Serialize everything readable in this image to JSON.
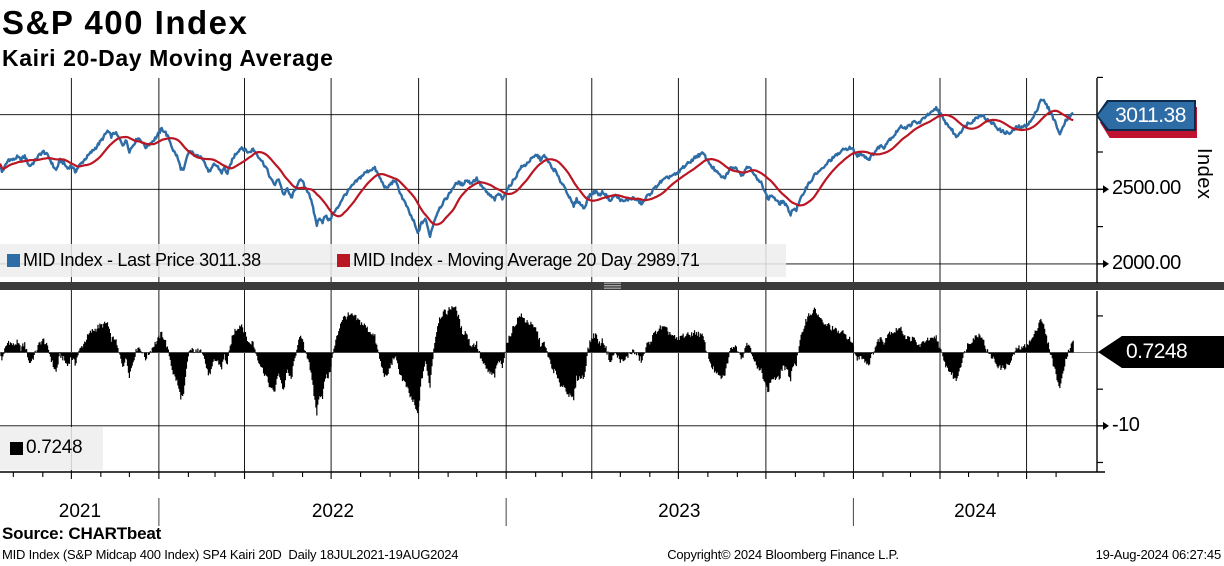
{
  "header": {
    "title": "S&P 400 Index",
    "subtitle": "Kairi 20-Day Moving Average"
  },
  "legend_top": {
    "items": [
      {
        "label": "MID Index - Last Price 3011.38",
        "swatch_color": "#2e6ca6"
      },
      {
        "label": "MID Index - Moving Average 20 Day 2989.71",
        "swatch_color": "#bb1624"
      }
    ]
  },
  "legend_bottom": {
    "label": "0.7248",
    "swatch_color": "#000000"
  },
  "badges": {
    "price": "3011.38",
    "kairi": "0.7248"
  },
  "axis": {
    "index_label": "Index",
    "top_labels": [
      {
        "value": 2500,
        "text": "2500.00"
      },
      {
        "value": 2000,
        "text": "2000.00"
      }
    ],
    "bottom_labels": [
      {
        "value": -10,
        "text": "-10"
      }
    ],
    "years": [
      {
        "text": "2021",
        "center_day": 84
      },
      {
        "text": "2022",
        "center_day": 350
      },
      {
        "text": "2023",
        "center_day": 714
      },
      {
        "text": "2024",
        "center_day": 1025
      }
    ]
  },
  "footer": {
    "source": "Source: CHARTbeat",
    "description": "MID Index (S&P Midcap 400 Index) SP4 Kairi 20D  Daily 18JUL2021-19AUG2024",
    "copyright": "Copyright© 2024 Bloomberg Finance L.P.",
    "timestamp": "19-Aug-2024 06:27:45"
  },
  "chart_data": {
    "type": "line+bar",
    "title": "S&P 400 Index - Kairi 20-Day Moving Average",
    "x_range_label": "18JUL2021-19AUG2024",
    "x": {
      "total_days": 1153,
      "data_days": 1128,
      "quarter_gridline_days": [
        75,
        167,
        257,
        348,
        440,
        532,
        622,
        713,
        805,
        897,
        988,
        1079
      ],
      "month_tick_days": [
        14,
        45,
        75,
        106,
        136,
        167,
        198,
        226,
        257,
        287,
        318,
        348,
        379,
        410,
        440,
        471,
        501,
        532,
        563,
        591,
        622,
        652,
        683,
        713,
        744,
        775,
        805,
        836,
        866,
        897,
        928,
        957,
        988,
        1018,
        1049,
        1079,
        1110
      ],
      "year_separator_days": [
        167,
        532,
        897
      ]
    },
    "panels": [
      {
        "type": "line",
        "name": "price",
        "series": [
          {
            "name": "MID Index - Last Price",
            "color": "#2e6ca6",
            "last_value": 3011.38
          },
          {
            "name": "MID Index - Moving Average 20 Day",
            "color": "#bb1624",
            "derived": "moving_average",
            "window_days": 28,
            "last_value": 2989.71
          }
        ],
        "y_gridlines": [
          2000,
          2500,
          3000
        ],
        "y_tick_step": 250,
        "y_labeled_ticks": [
          2500,
          2000
        ],
        "y_minor_ticks": [
          3250,
          2750,
          2250
        ],
        "value_range_bottom_top": [
          1872,
          3246
        ],
        "ylabel": "Index"
      },
      {
        "type": "bar",
        "name": "kairi",
        "series": [
          {
            "name": "Kairi 20-Day",
            "color": "#000000",
            "derived": "kairi_percent",
            "last_value": 0.7248
          }
        ],
        "y_gridlines": [
          -10
        ],
        "y_tick_step": 5,
        "y_labeled_ticks": [
          -10
        ],
        "y_minor_ticks": [
          5,
          -5,
          -15
        ],
        "value_range_bottom_top": [
          -16.3,
          8.4
        ]
      }
    ],
    "noise_amplitude": 11,
    "price_keypoints": [
      [
        0,
        2672
      ],
      [
        2,
        2615
      ],
      [
        5,
        2650
      ],
      [
        9,
        2700
      ],
      [
        14,
        2698
      ],
      [
        18,
        2716
      ],
      [
        22,
        2700
      ],
      [
        26,
        2722
      ],
      [
        31,
        2655
      ],
      [
        36,
        2684
      ],
      [
        42,
        2736
      ],
      [
        46,
        2752
      ],
      [
        51,
        2720
      ],
      [
        56,
        2655
      ],
      [
        59,
        2628
      ],
      [
        63,
        2694
      ],
      [
        67,
        2676
      ],
      [
        71,
        2640
      ],
      [
        75,
        2660
      ],
      [
        79,
        2618
      ],
      [
        83,
        2656
      ],
      [
        89,
        2700
      ],
      [
        95,
        2742
      ],
      [
        101,
        2782
      ],
      [
        107,
        2832
      ],
      [
        113,
        2890
      ],
      [
        117,
        2856
      ],
      [
        121,
        2882
      ],
      [
        125,
        2842
      ],
      [
        129,
        2800
      ],
      [
        133,
        2826
      ],
      [
        136,
        2756
      ],
      [
        141,
        2808
      ],
      [
        145,
        2846
      ],
      [
        149,
        2822
      ],
      [
        153,
        2782
      ],
      [
        157,
        2802
      ],
      [
        161,
        2826
      ],
      [
        165,
        2856
      ],
      [
        170,
        2906
      ],
      [
        174,
        2880
      ],
      [
        178,
        2832
      ],
      [
        182,
        2762
      ],
      [
        186,
        2722
      ],
      [
        190,
        2642
      ],
      [
        193,
        2622
      ],
      [
        196,
        2702
      ],
      [
        199,
        2758
      ],
      [
        203,
        2740
      ],
      [
        207,
        2716
      ],
      [
        211,
        2730
      ],
      [
        215,
        2680
      ],
      [
        218,
        2632
      ],
      [
        221,
        2616
      ],
      [
        225,
        2670
      ],
      [
        229,
        2650
      ],
      [
        233,
        2612
      ],
      [
        236,
        2646
      ],
      [
        239,
        2602
      ],
      [
        243,
        2680
      ],
      [
        247,
        2732
      ],
      [
        251,
        2762
      ],
      [
        254,
        2782
      ],
      [
        258,
        2760
      ],
      [
        262,
        2746
      ],
      [
        266,
        2770
      ],
      [
        270,
        2736
      ],
      [
        275,
        2692
      ],
      [
        280,
        2642
      ],
      [
        285,
        2562
      ],
      [
        289,
        2532
      ],
      [
        293,
        2572
      ],
      [
        298,
        2462
      ],
      [
        302,
        2502
      ],
      [
        306,
        2442
      ],
      [
        310,
        2492
      ],
      [
        313,
        2542
      ],
      [
        317,
        2562
      ],
      [
        321,
        2512
      ],
      [
        325,
        2472
      ],
      [
        329,
        2372
      ],
      [
        333,
        2262
      ],
      [
        336,
        2312
      ],
      [
        339,
        2282
      ],
      [
        342,
        2322
      ],
      [
        346,
        2292
      ],
      [
        350,
        2332
      ],
      [
        355,
        2378
      ],
      [
        360,
        2440
      ],
      [
        366,
        2490
      ],
      [
        372,
        2536
      ],
      [
        378,
        2576
      ],
      [
        384,
        2612
      ],
      [
        391,
        2636
      ],
      [
        394,
        2640
      ],
      [
        398,
        2592
      ],
      [
        402,
        2542
      ],
      [
        406,
        2502
      ],
      [
        410,
        2532
      ],
      [
        415,
        2562
      ],
      [
        419,
        2502
      ],
      [
        423,
        2442
      ],
      [
        427,
        2392
      ],
      [
        431,
        2332
      ],
      [
        435,
        2282
      ],
      [
        439,
        2203
      ],
      [
        443,
        2272
      ],
      [
        447,
        2302
      ],
      [
        450,
        2232
      ],
      [
        452,
        2188
      ],
      [
        456,
        2282
      ],
      [
        461,
        2366
      ],
      [
        466,
        2412
      ],
      [
        471,
        2456
      ],
      [
        476,
        2512
      ],
      [
        481,
        2546
      ],
      [
        486,
        2532
      ],
      [
        490,
        2562
      ],
      [
        495,
        2542
      ],
      [
        501,
        2572
      ],
      [
        506,
        2522
      ],
      [
        511,
        2482
      ],
      [
        516,
        2452
      ],
      [
        520,
        2432
      ],
      [
        524,
        2472
      ],
      [
        528,
        2442
      ],
      [
        532,
        2482
      ],
      [
        537,
        2536
      ],
      [
        542,
        2582
      ],
      [
        547,
        2644
      ],
      [
        552,
        2662
      ],
      [
        557,
        2694
      ],
      [
        561,
        2714
      ],
      [
        564,
        2731
      ],
      [
        568,
        2702
      ],
      [
        572,
        2722
      ],
      [
        576,
        2692
      ],
      [
        580,
        2642
      ],
      [
        584,
        2622
      ],
      [
        588,
        2562
      ],
      [
        592,
        2532
      ],
      [
        596,
        2482
      ],
      [
        600,
        2422
      ],
      [
        603,
        2388
      ],
      [
        606,
        2432
      ],
      [
        610,
        2402
      ],
      [
        614,
        2372
      ],
      [
        618,
        2442
      ],
      [
        622,
        2472
      ],
      [
        626,
        2486
      ],
      [
        630,
        2462
      ],
      [
        634,
        2482
      ],
      [
        638,
        2452
      ],
      [
        642,
        2422
      ],
      [
        646,
        2462
      ],
      [
        650,
        2442
      ],
      [
        655,
        2416
      ],
      [
        660,
        2432
      ],
      [
        665,
        2442
      ],
      [
        670,
        2426
      ],
      [
        675,
        2402
      ],
      [
        680,
        2452
      ],
      [
        685,
        2482
      ],
      [
        690,
        2522
      ],
      [
        695,
        2552
      ],
      [
        700,
        2572
      ],
      [
        706,
        2592
      ],
      [
        712,
        2602
      ],
      [
        717,
        2644
      ],
      [
        722,
        2666
      ],
      [
        727,
        2694
      ],
      [
        732,
        2722
      ],
      [
        736,
        2732
      ],
      [
        739,
        2741
      ],
      [
        743,
        2702
      ],
      [
        747,
        2662
      ],
      [
        751,
        2632
      ],
      [
        755,
        2602
      ],
      [
        761,
        2572
      ],
      [
        765,
        2612
      ],
      [
        769,
        2652
      ],
      [
        773,
        2642
      ],
      [
        776,
        2630
      ],
      [
        780,
        2592
      ],
      [
        784,
        2642
      ],
      [
        788,
        2652
      ],
      [
        792,
        2612
      ],
      [
        796,
        2562
      ],
      [
        800,
        2542
      ],
      [
        804,
        2492
      ],
      [
        807,
        2432
      ],
      [
        811,
        2462
      ],
      [
        815,
        2432
      ],
      [
        819,
        2402
      ],
      [
        823,
        2422
      ],
      [
        827,
        2382
      ],
      [
        831,
        2335
      ],
      [
        834,
        2372
      ],
      [
        837,
        2362
      ],
      [
        841,
        2426
      ],
      [
        845,
        2482
      ],
      [
        849,
        2532
      ],
      [
        853,
        2562
      ],
      [
        857,
        2602
      ],
      [
        861,
        2622
      ],
      [
        866,
        2642
      ],
      [
        870,
        2682
      ],
      [
        874,
        2702
      ],
      [
        878,
        2722
      ],
      [
        882,
        2742
      ],
      [
        886,
        2762
      ],
      [
        892,
        2778
      ],
      [
        896,
        2770
      ],
      [
        901,
        2722
      ],
      [
        905,
        2742
      ],
      [
        909,
        2722
      ],
      [
        913,
        2700
      ],
      [
        917,
        2732
      ],
      [
        921,
        2762
      ],
      [
        925,
        2792
      ],
      [
        929,
        2782
      ],
      [
        933,
        2822
      ],
      [
        936,
        2842
      ],
      [
        940,
        2862
      ],
      [
        944,
        2902
      ],
      [
        948,
        2922
      ],
      [
        952,
        2912
      ],
      [
        957,
        2932
      ],
      [
        961,
        2952
      ],
      [
        965,
        2942
      ],
      [
        969,
        2962
      ],
      [
        973,
        2992
      ],
      [
        977,
        3002
      ],
      [
        981,
        3022
      ],
      [
        984,
        3046
      ],
      [
        988,
        3012
      ],
      [
        992,
        2962
      ],
      [
        996,
        2932
      ],
      [
        1000,
        2902
      ],
      [
        1005,
        2852
      ],
      [
        1009,
        2882
      ],
      [
        1013,
        2912
      ],
      [
        1017,
        2942
      ],
      [
        1021,
        2952
      ],
      [
        1025,
        2972
      ],
      [
        1029,
        2992
      ],
      [
        1032,
        3002
      ],
      [
        1036,
        2972
      ],
      [
        1040,
        2952
      ],
      [
        1044,
        2942
      ],
      [
        1048,
        2912
      ],
      [
        1052,
        2892
      ],
      [
        1056,
        2882
      ],
      [
        1062,
        2874
      ],
      [
        1066,
        2902
      ],
      [
        1070,
        2922
      ],
      [
        1074,
        2912
      ],
      [
        1079,
        2932
      ],
      [
        1083,
        2952
      ],
      [
        1087,
        2992
      ],
      [
        1091,
        3052
      ],
      [
        1094,
        3106
      ],
      [
        1097,
        3092
      ],
      [
        1100,
        3062
      ],
      [
        1103,
        3032
      ],
      [
        1106,
        2992
      ],
      [
        1109,
        2952
      ],
      [
        1112,
        2902
      ],
      [
        1114,
        2859
      ],
      [
        1117,
        2922
      ],
      [
        1120,
        2962
      ],
      [
        1123,
        2982
      ],
      [
        1126,
        3002
      ],
      [
        1128,
        3011.38
      ]
    ]
  }
}
